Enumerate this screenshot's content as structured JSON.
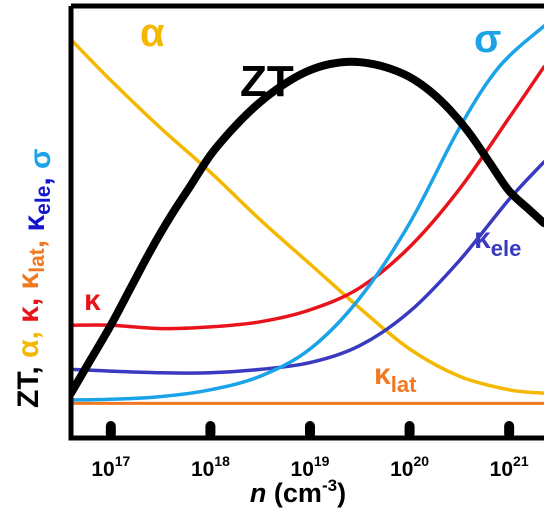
{
  "chart_data": {
    "type": "line",
    "title": "",
    "xlabel": {
      "var": "n",
      "unit_open": " (cm",
      "unit_exp": "-3",
      "unit_close": ")"
    },
    "ylabel": {
      "parts": [
        {
          "text": "ZT, ",
          "color": "#000000"
        },
        {
          "text": "α, ",
          "color": "#F5B800"
        },
        {
          "text": "κ, ",
          "color": "#E8141C"
        },
        {
          "text": "κ",
          "sub": "lat",
          "color": "#F07820"
        },
        {
          "text": ", ",
          "color": "#F07820"
        },
        {
          "text": "κ",
          "sub": "ele",
          "color": "#1515D0"
        },
        {
          "text": ", ",
          "color": "#1515D0"
        },
        {
          "text": "σ",
          "color": "#1AA3E8"
        }
      ]
    },
    "x_scale": "log",
    "x_ticks": [
      {
        "base": "10",
        "exp": "17",
        "value": 1e+17
      },
      {
        "base": "10",
        "exp": "18",
        "value": 1e+18
      },
      {
        "base": "10",
        "exp": "19",
        "value": 1e+19
      },
      {
        "base": "10",
        "exp": "20",
        "value": 1e+20
      },
      {
        "base": "10",
        "exp": "21",
        "value": 1e+21
      }
    ],
    "x_range_log10": [
      16.6,
      21.35
    ],
    "y_range": [
      0,
      1
    ],
    "grid": false,
    "legend": "none",
    "series": [
      {
        "name": "ZT",
        "label": {
          "main": "ZT",
          "sub": ""
        },
        "color": "#000000",
        "x_log10": [
          16.6,
          16.8,
          17.0,
          17.2,
          17.4,
          17.6,
          17.8,
          18.0,
          18.2,
          18.4,
          18.6,
          18.8,
          19.0,
          19.2,
          19.4,
          19.6,
          19.8,
          20.0,
          20.2,
          20.4,
          20.6,
          20.8,
          21.0,
          21.2,
          21.35
        ],
        "y": [
          0.02,
          0.12,
          0.22,
          0.33,
          0.44,
          0.54,
          0.63,
          0.72,
          0.79,
          0.85,
          0.9,
          0.94,
          0.97,
          0.988,
          0.995,
          0.99,
          0.975,
          0.95,
          0.91,
          0.855,
          0.785,
          0.7,
          0.615,
          0.56,
          0.52
        ]
      },
      {
        "name": "α",
        "label": {
          "main": "α",
          "sub": ""
        },
        "color": "#F5B800",
        "x_log10": [
          16.6,
          17.0,
          17.5,
          18.0,
          18.5,
          19.0,
          19.5,
          20.0,
          20.5,
          21.0,
          21.35
        ],
        "y": [
          1.06,
          0.94,
          0.8,
          0.67,
          0.53,
          0.4,
          0.27,
          0.15,
          0.07,
          0.03,
          0.02
        ]
      },
      {
        "name": "κ",
        "label": {
          "main": "κ",
          "sub": ""
        },
        "color": "#E8141C",
        "x_log10": [
          16.6,
          17.0,
          17.5,
          18.0,
          18.5,
          19.0,
          19.5,
          20.0,
          20.5,
          21.0,
          21.35
        ],
        "y": [
          0.22,
          0.22,
          0.21,
          0.215,
          0.23,
          0.265,
          0.33,
          0.45,
          0.62,
          0.83,
          0.98
        ]
      },
      {
        "name": "κlat",
        "label": {
          "main": "κ",
          "sub": "lat"
        },
        "color": "#F07820",
        "x_log10": [
          16.6,
          21.35
        ],
        "y": [
          -0.01,
          -0.01
        ]
      },
      {
        "name": "κele",
        "label": {
          "main": "κ",
          "sub": "ele"
        },
        "color": "#3A3AC0",
        "x_log10": [
          16.6,
          17.0,
          17.5,
          18.0,
          18.5,
          19.0,
          19.5,
          20.0,
          20.5,
          21.0,
          21.35
        ],
        "y": [
          0.09,
          0.085,
          0.08,
          0.08,
          0.09,
          0.11,
          0.16,
          0.26,
          0.41,
          0.59,
          0.7
        ]
      },
      {
        "name": "σ",
        "label": {
          "main": "σ",
          "sub": ""
        },
        "color": "#1AA3E8",
        "x_log10": [
          16.6,
          17.0,
          17.5,
          18.0,
          18.5,
          19.0,
          19.5,
          20.0,
          20.5,
          20.9,
          21.35
        ],
        "y": [
          0.0,
          0.002,
          0.01,
          0.03,
          0.07,
          0.15,
          0.3,
          0.52,
          0.8,
          0.98,
          1.1
        ]
      }
    ]
  }
}
